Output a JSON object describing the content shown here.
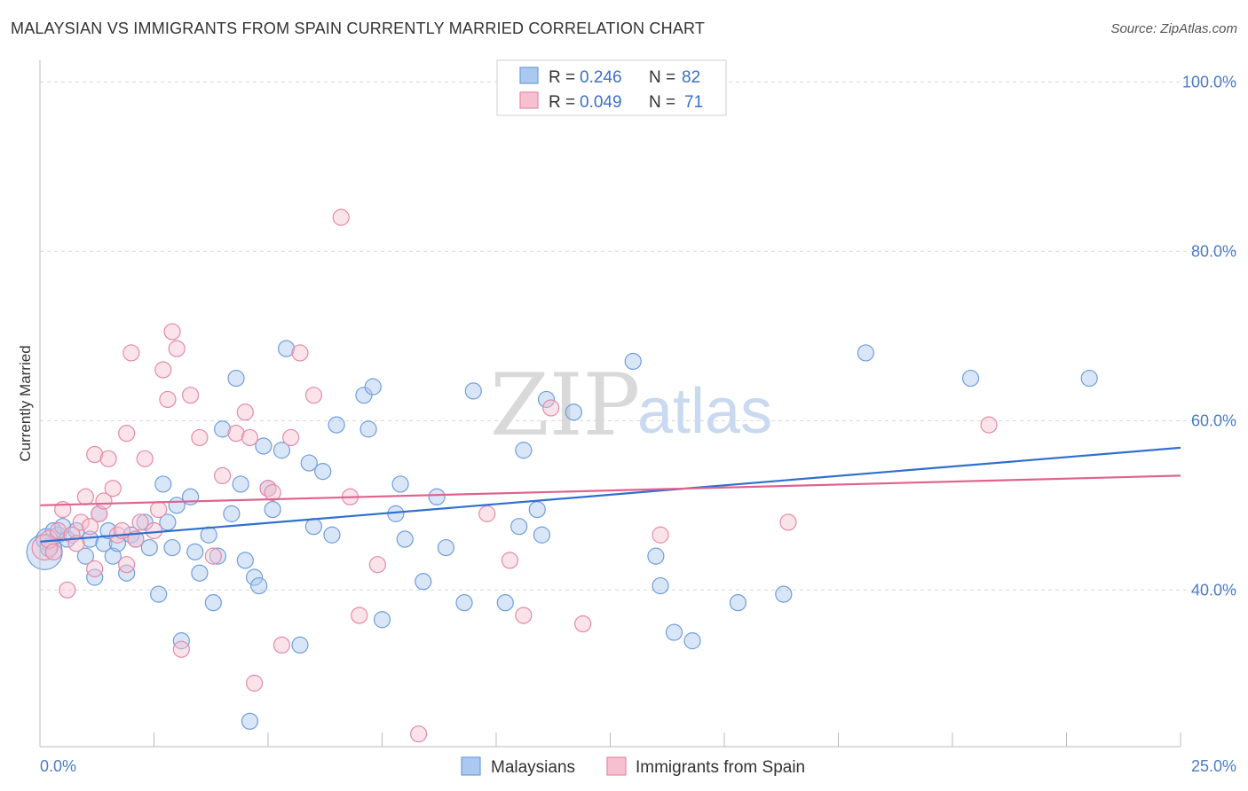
{
  "title": "MALAYSIAN VS IMMIGRANTS FROM SPAIN CURRENTLY MARRIED CORRELATION CHART",
  "source": "Source: ZipAtlas.com",
  "watermark": {
    "zip": "ZIP",
    "atlas": "atlas"
  },
  "colors": {
    "blue_fill": "#aac8f0",
    "blue_stroke": "#6f9edc",
    "blue_line": "#2f6fcf",
    "pink_fill": "#f7c0d0",
    "pink_stroke": "#e58aa8",
    "pink_line": "#e0628e",
    "grid": "#d8d8d8",
    "tick_label": "#4a7cc9"
  },
  "legend_top": {
    "rows": [
      {
        "r_label": "R =",
        "r_value": "0.246",
        "n_label": "N =",
        "n_value": "82",
        "series": "blue"
      },
      {
        "r_label": "R =",
        "r_value": "0.049",
        "n_label": "N =",
        "n_value": "71",
        "series": "pink"
      }
    ]
  },
  "legend_bottom": [
    "Malaysians",
    "Immigrants from Spain"
  ],
  "chart_data": {
    "type": "scatter",
    "title": "MALAYSIAN VS IMMIGRANTS FROM SPAIN CURRENTLY MARRIED CORRELATION CHART",
    "xlabel": "",
    "ylabel": "Currently Married",
    "xlim": [
      0,
      25
    ],
    "ylim": [
      21.5,
      101.5
    ],
    "x_tick_labels": [
      "0.0%",
      "25.0%"
    ],
    "y_ticks": [
      40,
      60,
      80,
      100
    ],
    "y_tick_labels": [
      "40.0%",
      "60.0%",
      "80.0%",
      "100.0%"
    ],
    "grid": true,
    "legend_position": "top-center",
    "series": [
      {
        "name": "Malaysians",
        "color": "blue",
        "trend": {
          "x": [
            0,
            25
          ],
          "y": [
            45.7,
            56.8
          ]
        },
        "points": [
          [
            0.1,
            44.5,
            20
          ],
          [
            0.15,
            46.0,
            12
          ],
          [
            0.2,
            45.0,
            10
          ],
          [
            0.3,
            47.0,
            9
          ],
          [
            0.4,
            46.5,
            9
          ],
          [
            0.5,
            47.5,
            9
          ],
          [
            0.6,
            46.0,
            9
          ],
          [
            0.8,
            47.0,
            9
          ],
          [
            1.0,
            44.0,
            9
          ],
          [
            1.1,
            46.0,
            9
          ],
          [
            1.2,
            41.5,
            9
          ],
          [
            1.3,
            49.0,
            9
          ],
          [
            1.4,
            45.5,
            9
          ],
          [
            1.5,
            47.0,
            9
          ],
          [
            1.6,
            44.0,
            9
          ],
          [
            1.7,
            45.5,
            9
          ],
          [
            1.9,
            42.0,
            9
          ],
          [
            2.0,
            46.5,
            9
          ],
          [
            2.1,
            46.0,
            9
          ],
          [
            2.3,
            48.0,
            9
          ],
          [
            2.4,
            45.0,
            9
          ],
          [
            2.6,
            39.5,
            9
          ],
          [
            2.7,
            52.5,
            9
          ],
          [
            2.8,
            48.0,
            9
          ],
          [
            2.9,
            45.0,
            9
          ],
          [
            3.0,
            50.0,
            9
          ],
          [
            3.1,
            34.0,
            9
          ],
          [
            3.3,
            51.0,
            9
          ],
          [
            3.4,
            44.5,
            9
          ],
          [
            3.5,
            42.0,
            9
          ],
          [
            3.7,
            46.5,
            9
          ],
          [
            3.8,
            38.5,
            9
          ],
          [
            3.9,
            44.0,
            9
          ],
          [
            4.0,
            59.0,
            9
          ],
          [
            4.2,
            49.0,
            9
          ],
          [
            4.3,
            65.0,
            9
          ],
          [
            4.4,
            52.5,
            9
          ],
          [
            4.5,
            43.5,
            9
          ],
          [
            4.6,
            24.5,
            9
          ],
          [
            4.7,
            41.5,
            9
          ],
          [
            4.8,
            40.5,
            9
          ],
          [
            4.9,
            57.0,
            9
          ],
          [
            5.0,
            52.0,
            9
          ],
          [
            5.1,
            49.5,
            9
          ],
          [
            5.3,
            56.5,
            9
          ],
          [
            5.4,
            68.5,
            9
          ],
          [
            5.7,
            33.5,
            9
          ],
          [
            5.9,
            55.0,
            9
          ],
          [
            6.0,
            47.5,
            9
          ],
          [
            6.2,
            54.0,
            9
          ],
          [
            6.4,
            46.5,
            9
          ],
          [
            6.5,
            59.5,
            9
          ],
          [
            7.1,
            63.0,
            9
          ],
          [
            7.2,
            59.0,
            9
          ],
          [
            7.3,
            64.0,
            9
          ],
          [
            7.5,
            36.5,
            9
          ],
          [
            7.8,
            49.0,
            9
          ],
          [
            7.9,
            52.5,
            9
          ],
          [
            8.0,
            46.0,
            9
          ],
          [
            8.4,
            41.0,
            9
          ],
          [
            8.7,
            51.0,
            9
          ],
          [
            8.9,
            45.0,
            9
          ],
          [
            9.3,
            38.5,
            9
          ],
          [
            9.5,
            63.5,
            9
          ],
          [
            10.2,
            38.5,
            9
          ],
          [
            10.5,
            47.5,
            9
          ],
          [
            10.6,
            56.5,
            9
          ],
          [
            10.9,
            49.5,
            9
          ],
          [
            11.0,
            46.5,
            9
          ],
          [
            11.1,
            62.5,
            9
          ],
          [
            11.7,
            61.0,
            9
          ],
          [
            13.0,
            67.0,
            9
          ],
          [
            13.5,
            44.0,
            9
          ],
          [
            13.6,
            40.5,
            9
          ],
          [
            13.9,
            35.0,
            9
          ],
          [
            14.3,
            34.0,
            9
          ],
          [
            15.3,
            38.5,
            9
          ],
          [
            16.3,
            39.5,
            9
          ],
          [
            18.1,
            68.0,
            9
          ],
          [
            20.4,
            65.0,
            9
          ],
          [
            23.0,
            65.0,
            9
          ]
        ]
      },
      {
        "name": "Immigrants from Spain",
        "color": "pink",
        "trend": {
          "x": [
            0,
            25
          ],
          "y": [
            50.0,
            53.5
          ]
        },
        "points": [
          [
            0.1,
            45.0,
            14
          ],
          [
            0.2,
            46.0,
            10
          ],
          [
            0.3,
            44.5,
            9
          ],
          [
            0.4,
            47.0,
            9
          ],
          [
            0.5,
            49.5,
            9
          ],
          [
            0.6,
            40.0,
            9
          ],
          [
            0.7,
            46.5,
            9
          ],
          [
            0.8,
            45.5,
            9
          ],
          [
            0.9,
            48.0,
            9
          ],
          [
            1.0,
            51.0,
            9
          ],
          [
            1.1,
            47.5,
            9
          ],
          [
            1.2,
            56.0,
            9
          ],
          [
            1.2,
            42.5,
            9
          ],
          [
            1.3,
            49.0,
            9
          ],
          [
            1.4,
            50.5,
            9
          ],
          [
            1.5,
            55.5,
            9
          ],
          [
            1.6,
            52.0,
            9
          ],
          [
            1.7,
            46.5,
            9
          ],
          [
            1.8,
            47.0,
            9
          ],
          [
            1.9,
            43.0,
            9
          ],
          [
            1.9,
            58.5,
            9
          ],
          [
            2.0,
            68.0,
            9
          ],
          [
            2.1,
            46.0,
            9
          ],
          [
            2.2,
            48.0,
            9
          ],
          [
            2.3,
            55.5,
            9
          ],
          [
            2.5,
            47.0,
            9
          ],
          [
            2.6,
            49.5,
            9
          ],
          [
            2.7,
            66.0,
            9
          ],
          [
            2.8,
            62.5,
            9
          ],
          [
            2.9,
            70.5,
            9
          ],
          [
            3.0,
            68.5,
            9
          ],
          [
            3.1,
            33.0,
            9
          ],
          [
            3.3,
            63.0,
            9
          ],
          [
            3.5,
            58.0,
            9
          ],
          [
            3.8,
            44.0,
            9
          ],
          [
            4.0,
            53.5,
            9
          ],
          [
            4.3,
            58.5,
            9
          ],
          [
            4.5,
            61.0,
            9
          ],
          [
            4.6,
            58.0,
            9
          ],
          [
            4.7,
            29.0,
            9
          ],
          [
            5.0,
            52.0,
            9
          ],
          [
            5.1,
            51.5,
            9
          ],
          [
            5.3,
            33.5,
            9
          ],
          [
            5.5,
            58.0,
            9
          ],
          [
            5.7,
            68.0,
            9
          ],
          [
            6.0,
            63.0,
            9
          ],
          [
            6.6,
            84.0,
            9
          ],
          [
            6.8,
            51.0,
            9
          ],
          [
            7.0,
            37.0,
            9
          ],
          [
            7.4,
            43.0,
            9
          ],
          [
            8.3,
            23.0,
            9
          ],
          [
            9.8,
            49.0,
            9
          ],
          [
            10.3,
            43.5,
            9
          ],
          [
            10.6,
            37.0,
            9
          ],
          [
            11.2,
            61.5,
            9
          ],
          [
            11.9,
            36.0,
            9
          ],
          [
            13.6,
            46.5,
            9
          ],
          [
            16.4,
            48.0,
            9
          ],
          [
            20.8,
            59.5,
            9
          ]
        ]
      }
    ]
  }
}
